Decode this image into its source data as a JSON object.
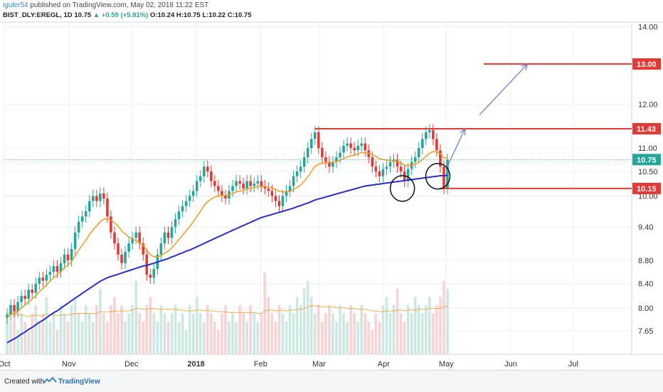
{
  "header": {
    "user": "iguler54",
    "published": "published on TradingView.com, May 02, 2018 11:22 EST",
    "symbol": "BIST_DLY:EREGL, 1D",
    "last": "10.75",
    "change": "+0.59 (+5.81%)",
    "ohlc": "O:10.24 H:10.75 L:10.22 C:10.75"
  },
  "footer": {
    "created": "Created with",
    "brand": "TradingView"
  },
  "chart_data": {
    "type": "candlestick",
    "ylim": [
      7.3,
      14.05
    ],
    "y_ticks": [
      14.0,
      12.0,
      11.0,
      10.5,
      10.0,
      9.4,
      8.8,
      8.4,
      8.0,
      7.65
    ],
    "y_tick_labels": [
      "14.00",
      "12.00",
      "11.00",
      "10.50",
      "10.00",
      "9.40",
      "8.80",
      "8.40",
      "8.00",
      "7.65"
    ],
    "x_labels": [
      {
        "label": "Oct",
        "day": 0
      },
      {
        "label": "Nov",
        "day": 31
      },
      {
        "label": "Dec",
        "day": 61
      },
      {
        "label": "2018",
        "day": 92
      },
      {
        "label": "Feb",
        "day": 123
      },
      {
        "label": "Mar",
        "day": 151
      },
      {
        "label": "Apr",
        "day": 182
      },
      {
        "label": "May",
        "day": 212
      },
      {
        "label": "Jun",
        "day": 243
      },
      {
        "label": "Jul",
        "day": 273
      }
    ],
    "x_range_days": [
      0,
      301
    ],
    "closes": [
      7.9,
      8.05,
      7.95,
      8.1,
      8.2,
      8.15,
      8.3,
      8.25,
      8.4,
      8.5,
      8.45,
      8.55,
      8.6,
      8.7,
      8.6,
      8.75,
      8.9,
      8.8,
      9.0,
      9.3,
      9.5,
      9.6,
      9.7,
      9.9,
      10.0,
      9.9,
      10.05,
      9.95,
      9.6,
      9.3,
      9.1,
      8.9,
      8.75,
      8.95,
      9.1,
      9.2,
      9.3,
      9.1,
      8.9,
      8.55,
      8.5,
      8.65,
      8.9,
      9.1,
      9.3,
      9.2,
      9.4,
      9.55,
      9.7,
      9.8,
      9.9,
      10.0,
      10.1,
      10.3,
      10.4,
      10.6,
      10.5,
      10.3,
      10.2,
      10.1,
      10.0,
      9.95,
      10.1,
      10.2,
      10.3,
      10.25,
      10.15,
      10.3,
      10.2,
      10.25,
      10.3,
      10.2,
      10.15,
      10.1,
      10.0,
      9.9,
      9.8,
      10.0,
      10.1,
      10.2,
      10.4,
      10.5,
      10.6,
      10.8,
      11.0,
      11.2,
      11.35,
      11.0,
      10.8,
      10.7,
      10.6,
      10.7,
      10.8,
      10.9,
      11.05,
      11.1,
      11.0,
      10.95,
      11.05,
      11.1,
      10.95,
      10.8,
      10.6,
      10.5,
      10.4,
      10.55,
      10.6,
      10.7,
      10.75,
      10.6,
      10.5,
      10.3,
      10.55,
      10.7,
      10.8,
      11.0,
      11.2,
      11.35,
      11.4,
      11.2,
      10.95,
      10.6,
      10.16,
      10.75
    ],
    "ma_short": [
      7.85,
      7.9,
      7.92,
      7.95,
      8.0,
      8.05,
      8.1,
      8.15,
      8.2,
      8.27,
      8.32,
      8.38,
      8.44,
      8.5,
      8.55,
      8.6,
      8.67,
      8.72,
      8.78,
      8.88,
      8.98,
      9.07,
      9.16,
      9.26,
      9.35,
      9.42,
      9.5,
      9.55,
      9.56,
      9.53,
      9.48,
      9.42,
      9.33,
      9.27,
      9.22,
      9.18,
      9.15,
      9.12,
      9.07,
      8.98,
      8.9,
      8.86,
      8.86,
      8.88,
      8.93,
      8.96,
      9.02,
      9.09,
      9.17,
      9.25,
      9.33,
      9.41,
      9.5,
      9.6,
      9.7,
      9.81,
      9.89,
      9.94,
      9.98,
      10.0,
      10.01,
      10.01,
      10.03,
      10.05,
      10.08,
      10.1,
      10.11,
      10.14,
      10.15,
      10.17,
      10.19,
      10.19,
      10.19,
      10.18,
      10.16,
      10.13,
      10.09,
      10.08,
      10.08,
      10.09,
      10.13,
      10.17,
      10.22,
      10.3,
      10.39,
      10.5,
      10.61,
      10.65,
      10.67,
      10.68,
      10.68,
      10.69,
      10.71,
      10.73,
      10.77,
      10.81,
      10.83,
      10.85,
      10.87,
      10.9,
      10.9,
      10.89,
      10.86,
      10.82,
      10.77,
      10.75,
      10.74,
      10.73,
      10.73,
      10.71,
      10.68,
      10.63,
      10.62,
      10.63,
      10.65,
      10.69,
      10.75,
      10.82,
      10.89,
      10.92,
      10.92,
      10.88,
      10.79,
      10.79
    ],
    "ma_long": [
      7.47,
      7.5,
      7.53,
      7.56,
      7.6,
      7.63,
      7.67,
      7.7,
      7.74,
      7.78,
      7.81,
      7.85,
      7.89,
      7.93,
      7.96,
      8.0,
      8.04,
      8.08,
      8.12,
      8.16,
      8.2,
      8.24,
      8.28,
      8.32,
      8.36,
      8.4,
      8.44,
      8.47,
      8.5,
      8.52,
      8.54,
      8.56,
      8.58,
      8.6,
      8.62,
      8.64,
      8.66,
      8.68,
      8.7,
      8.71,
      8.73,
      8.75,
      8.77,
      8.79,
      8.81,
      8.83,
      8.86,
      8.88,
      8.91,
      8.93,
      8.96,
      8.98,
      9.01,
      9.04,
      9.07,
      9.1,
      9.13,
      9.16,
      9.19,
      9.22,
      9.25,
      9.28,
      9.31,
      9.34,
      9.37,
      9.4,
      9.43,
      9.46,
      9.49,
      9.52,
      9.55,
      9.58,
      9.6,
      9.62,
      9.64,
      9.66,
      9.68,
      9.7,
      9.72,
      9.74,
      9.76,
      9.79,
      9.81,
      9.84,
      9.86,
      9.89,
      9.92,
      9.94,
      9.96,
      9.98,
      10.0,
      10.02,
      10.04,
      10.06,
      10.08,
      10.1,
      10.12,
      10.14,
      10.16,
      10.18,
      10.2,
      10.21,
      10.22,
      10.23,
      10.24,
      10.25,
      10.26,
      10.27,
      10.28,
      10.29,
      10.3,
      10.31,
      10.32,
      10.33,
      10.34,
      10.35,
      10.36,
      10.37,
      10.38,
      10.39,
      10.4,
      10.41,
      10.41,
      10.42
    ],
    "volume": [
      0.5,
      0.4,
      0.6,
      0.3,
      0.5,
      0.4,
      0.3,
      0.5,
      0.6,
      0.4,
      0.5,
      0.7,
      0.4,
      0.5,
      0.3,
      0.6,
      0.5,
      0.4,
      0.6,
      0.7,
      0.5,
      0.4,
      0.6,
      0.5,
      0.4,
      0.6,
      0.8,
      0.5,
      0.4,
      0.6,
      0.7,
      0.5,
      0.6,
      0.4,
      0.5,
      0.6,
      0.9,
      0.5,
      0.4,
      0.6,
      0.7,
      0.5,
      0.4,
      0.6,
      0.5,
      0.4,
      0.5,
      0.6,
      0.4,
      0.5,
      0.3,
      0.6,
      0.5,
      0.7,
      0.5,
      0.4,
      0.6,
      0.5,
      0.4,
      0.3,
      0.5,
      0.6,
      0.4,
      0.5,
      0.4,
      0.6,
      0.5,
      0.4,
      0.6,
      0.5,
      0.4,
      0.5,
      1.0,
      0.7,
      0.5,
      0.4,
      0.6,
      0.5,
      0.4,
      0.6,
      0.5,
      0.7,
      0.6,
      0.8,
      0.9,
      0.7,
      0.5,
      0.6,
      0.4,
      0.5,
      0.6,
      0.5,
      0.4,
      0.6,
      0.5,
      0.4,
      0.6,
      0.5,
      0.4,
      0.6,
      0.5,
      0.4,
      0.3,
      0.5,
      0.4,
      0.6,
      0.7,
      0.5,
      0.6,
      0.8,
      0.5,
      0.4,
      0.6,
      0.5,
      0.7,
      0.6,
      0.5,
      0.6,
      0.7,
      0.5,
      0.6,
      0.7,
      0.9,
      0.8
    ],
    "volume_ma": [
      0.5,
      0.49,
      0.5,
      0.48,
      0.48,
      0.47,
      0.46,
      0.47,
      0.48,
      0.47,
      0.47,
      0.49,
      0.48,
      0.48,
      0.47,
      0.48,
      0.48,
      0.48,
      0.49,
      0.5,
      0.5,
      0.5,
      0.5,
      0.5,
      0.5,
      0.5,
      0.52,
      0.52,
      0.52,
      0.52,
      0.53,
      0.53,
      0.53,
      0.53,
      0.53,
      0.54,
      0.56,
      0.56,
      0.55,
      0.55,
      0.56,
      0.56,
      0.55,
      0.55,
      0.55,
      0.55,
      0.55,
      0.55,
      0.54,
      0.54,
      0.53,
      0.53,
      0.53,
      0.54,
      0.54,
      0.53,
      0.54,
      0.53,
      0.53,
      0.52,
      0.52,
      0.52,
      0.51,
      0.51,
      0.51,
      0.51,
      0.51,
      0.51,
      0.51,
      0.51,
      0.5,
      0.5,
      0.53,
      0.54,
      0.54,
      0.53,
      0.54,
      0.54,
      0.53,
      0.54,
      0.54,
      0.55,
      0.55,
      0.56,
      0.58,
      0.59,
      0.59,
      0.59,
      0.58,
      0.58,
      0.58,
      0.58,
      0.57,
      0.57,
      0.57,
      0.56,
      0.56,
      0.56,
      0.55,
      0.55,
      0.55,
      0.54,
      0.53,
      0.53,
      0.52,
      0.52,
      0.53,
      0.53,
      0.53,
      0.54,
      0.54,
      0.53,
      0.54,
      0.54,
      0.54,
      0.55,
      0.55,
      0.55,
      0.56,
      0.56,
      0.56,
      0.56,
      0.58,
      0.59
    ],
    "price_labels": [
      {
        "value": 13.0,
        "label": "13.00",
        "color": "#e53935"
      },
      {
        "value": 11.43,
        "label": "11.43",
        "color": "#e53935"
      },
      {
        "value": 10.75,
        "label": "10.75",
        "color": "#26a69a"
      },
      {
        "value": 10.15,
        "label": "10.15",
        "color": "#e53935"
      }
    ],
    "hlines": [
      {
        "value": 13.0,
        "from_day": 230
      },
      {
        "value": 11.43,
        "from_day": 149
      },
      {
        "value": 10.15,
        "from_day": 209
      }
    ],
    "arrows": [
      {
        "from": [
          212,
          10.55
        ],
        "to": [
          221,
          11.43
        ]
      },
      {
        "from": [
          228,
          11.75
        ],
        "to": [
          251,
          13.0
        ]
      }
    ],
    "circles": [
      {
        "day": 191,
        "value": 10.15
      },
      {
        "day": 208,
        "value": 10.4
      }
    ],
    "colors": {
      "up": "#26a69a",
      "down": "#e53935",
      "ma_short": "#f29a1e",
      "ma_long": "#2a2ec8",
      "level": "#e53935",
      "arrow": "#6c7fc9",
      "last_price": "#26a69a"
    }
  }
}
